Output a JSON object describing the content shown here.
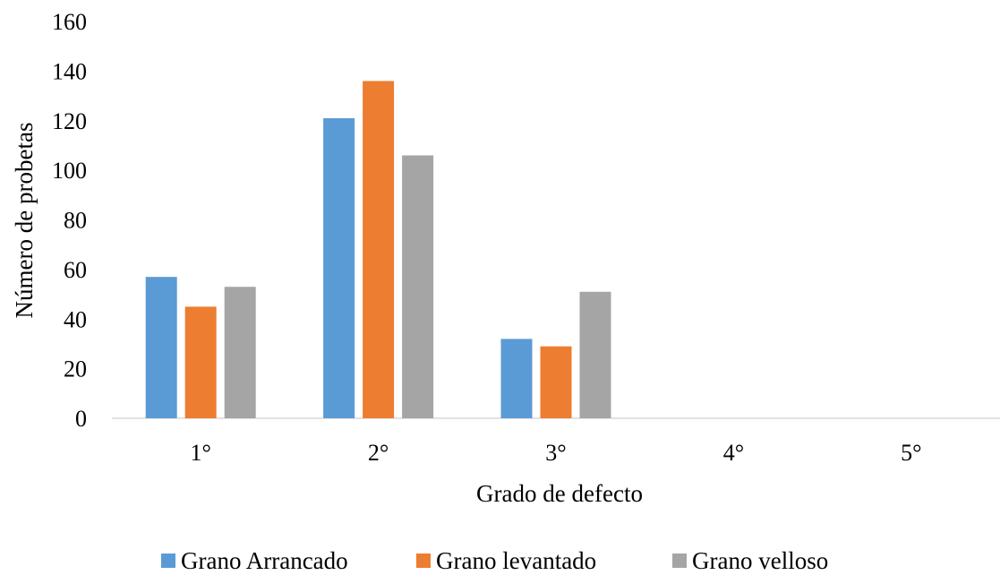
{
  "chart_data": {
    "type": "bar",
    "title": "",
    "xlabel": "Grado de defecto",
    "ylabel": "Número de probetas",
    "categories": [
      "1°",
      "2°",
      "3°",
      "4°",
      "5°"
    ],
    "series": [
      {
        "name": "Grano Arrancado",
        "color": "#5b9bd5",
        "values": [
          57,
          121,
          32,
          0,
          0
        ]
      },
      {
        "name": "Grano levantado",
        "color": "#ed7d31",
        "values": [
          45,
          136,
          29,
          0,
          0
        ]
      },
      {
        "name": "Grano velloso",
        "color": "#a5a5a5",
        "values": [
          53,
          106,
          51,
          0,
          0
        ]
      }
    ],
    "ylim": [
      0,
      160
    ],
    "yticks": [
      0,
      20,
      40,
      60,
      80,
      100,
      120,
      140,
      160
    ],
    "grid": false,
    "legend_position": "bottom"
  }
}
